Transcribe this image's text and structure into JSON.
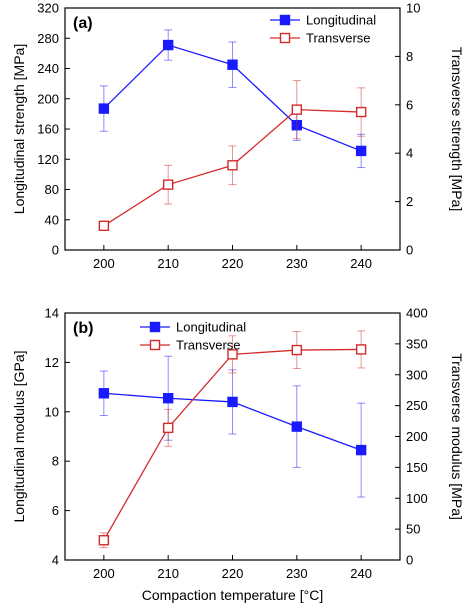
{
  "chart_data": [
    {
      "type": "line",
      "panel_label": "(a)",
      "x": [
        200,
        210,
        220,
        230,
        240
      ],
      "x_ticks": [
        "200",
        "210",
        "220",
        "230",
        "240"
      ],
      "xlabel": "",
      "y_left": {
        "label": "Longitudinal strength [MPa]",
        "lim": [
          0,
          320
        ],
        "ticks": [
          0,
          40,
          80,
          120,
          160,
          200,
          240,
          280,
          320
        ]
      },
      "y_right": {
        "label": "Transverse strength [MPa]",
        "lim": [
          0,
          10
        ],
        "ticks": [
          0,
          2,
          4,
          6,
          8,
          10
        ]
      },
      "legend_position": "top-right",
      "series": [
        {
          "name": "Longitudinal",
          "axis": "left",
          "color": "#1a1aff",
          "marker": "filled-square",
          "values": [
            187,
            271,
            245,
            165,
            131
          ],
          "err": [
            30,
            20,
            30,
            20,
            22
          ]
        },
        {
          "name": "Transverse",
          "axis": "right",
          "color": "#d42a2a",
          "marker": "open-square",
          "values": [
            1.0,
            2.7,
            3.5,
            5.8,
            5.7
          ],
          "err": [
            0.15,
            0.8,
            0.8,
            1.2,
            1.0
          ]
        }
      ]
    },
    {
      "type": "line",
      "panel_label": "(b)",
      "x": [
        200,
        210,
        220,
        230,
        240
      ],
      "x_ticks": [
        "200",
        "210",
        "220",
        "230",
        "240"
      ],
      "xlabel": "Compaction temperature [°C]",
      "y_left": {
        "label": "Longitudinal modulus [GPa]",
        "lim": [
          4,
          14
        ],
        "ticks": [
          4,
          6,
          8,
          10,
          12,
          14
        ]
      },
      "y_right": {
        "label": "Transverse modulus [MPa]",
        "lim": [
          0,
          400
        ],
        "ticks": [
          0,
          50,
          100,
          150,
          200,
          250,
          300,
          350,
          400
        ]
      },
      "legend_position": "top-left",
      "series": [
        {
          "name": "Longitudinal",
          "axis": "left",
          "color": "#1a1aff",
          "marker": "filled-square",
          "values": [
            10.75,
            10.55,
            10.4,
            9.4,
            8.45
          ],
          "err": [
            0.9,
            1.7,
            1.3,
            1.65,
            1.9
          ]
        },
        {
          "name": "Transverse",
          "axis": "right",
          "color": "#d42a2a",
          "marker": "open-square",
          "values": [
            32,
            214,
            333,
            340,
            341
          ],
          "err": [
            12,
            30,
            30,
            30,
            30
          ]
        }
      ]
    }
  ]
}
